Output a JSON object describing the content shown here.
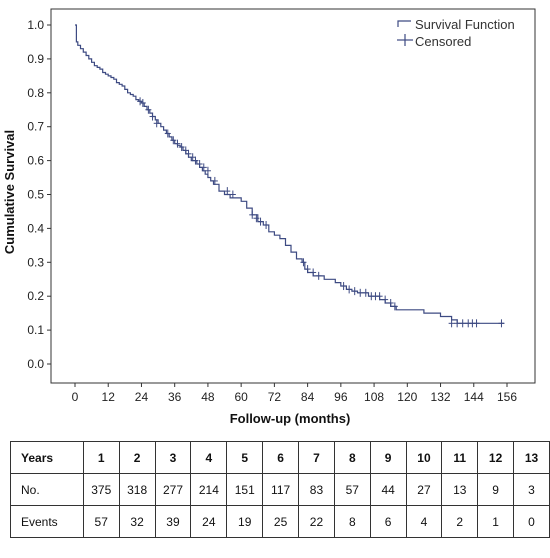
{
  "chart_data": {
    "type": "line",
    "step": true,
    "title": "",
    "xlabel": "Follow-up (months)",
    "ylabel": "Cumulative Survival",
    "xlim": [
      0,
      156
    ],
    "ylim": [
      0,
      1.0
    ],
    "xticks": [
      "0",
      "12",
      "24",
      "36",
      "48",
      "60",
      "72",
      "84",
      "96",
      "108",
      "120",
      "132",
      "144",
      "156"
    ],
    "yticks": [
      "0.0",
      "0.1",
      "0.2",
      "0.3",
      "0.4",
      "0.5",
      "0.6",
      "0.7",
      "0.8",
      "0.9",
      "1.0"
    ],
    "grid": false,
    "legend_position": "top-right",
    "legend": [
      "Survival Function",
      "Censored"
    ],
    "line_color": "#3d4a82",
    "series": [
      {
        "name": "Survival Function",
        "x": [
          0,
          0.5,
          1,
          2,
          3,
          4,
          5,
          6,
          7,
          8,
          9,
          10,
          11,
          12,
          13,
          14,
          15,
          16,
          17,
          18,
          19,
          20,
          21,
          22,
          23,
          24,
          25,
          26,
          27,
          28,
          29,
          30,
          31,
          32,
          33,
          34,
          35,
          36,
          37,
          38,
          39,
          40,
          41,
          42,
          43,
          44,
          45,
          46,
          47,
          48,
          49,
          50,
          52,
          54,
          56,
          58,
          60,
          62,
          64,
          66,
          68,
          70,
          72,
          74,
          76,
          78,
          80,
          82,
          83,
          84,
          86,
          88,
          90,
          92,
          94,
          96,
          98,
          100,
          102,
          104,
          106,
          108,
          110,
          112,
          114,
          116,
          118,
          120,
          122,
          124,
          126,
          128,
          130,
          132,
          134,
          136,
          138,
          140,
          155
        ],
        "y": [
          1.0,
          0.95,
          0.94,
          0.93,
          0.92,
          0.91,
          0.9,
          0.89,
          0.88,
          0.875,
          0.87,
          0.86,
          0.855,
          0.85,
          0.845,
          0.84,
          0.83,
          0.825,
          0.82,
          0.81,
          0.8,
          0.795,
          0.79,
          0.78,
          0.775,
          0.77,
          0.76,
          0.75,
          0.74,
          0.73,
          0.72,
          0.71,
          0.7,
          0.69,
          0.68,
          0.67,
          0.66,
          0.65,
          0.645,
          0.64,
          0.63,
          0.62,
          0.61,
          0.6,
          0.6,
          0.59,
          0.58,
          0.57,
          0.56,
          0.55,
          0.54,
          0.53,
          0.51,
          0.5,
          0.49,
          0.49,
          0.48,
          0.46,
          0.44,
          0.42,
          0.41,
          0.39,
          0.38,
          0.37,
          0.35,
          0.33,
          0.31,
          0.3,
          0.28,
          0.27,
          0.26,
          0.26,
          0.25,
          0.25,
          0.24,
          0.23,
          0.22,
          0.215,
          0.21,
          0.21,
          0.2,
          0.2,
          0.19,
          0.18,
          0.17,
          0.16,
          0.16,
          0.16,
          0.16,
          0.16,
          0.15,
          0.15,
          0.15,
          0.14,
          0.14,
          0.13,
          0.12,
          0.12,
          0.12
        ]
      }
    ],
    "censored": {
      "name": "Censored",
      "x": [
        23.5,
        24.5,
        26.5,
        28,
        29.5,
        33.5,
        35.5,
        37,
        38.5,
        40,
        41,
        42.5,
        43.5,
        45,
        46.5,
        48,
        50.5,
        55,
        57,
        64,
        65.5,
        67,
        69,
        82.5,
        84,
        86,
        88,
        97,
        99,
        101,
        103,
        105,
        107,
        108.5,
        110,
        112,
        114,
        115.5,
        136,
        138,
        140,
        142,
        143.5,
        145,
        154
      ],
      "y": [
        0.775,
        0.77,
        0.75,
        0.73,
        0.71,
        0.68,
        0.66,
        0.65,
        0.64,
        0.63,
        0.62,
        0.61,
        0.6,
        0.59,
        0.58,
        0.57,
        0.54,
        0.51,
        0.5,
        0.44,
        0.43,
        0.42,
        0.41,
        0.3,
        0.28,
        0.27,
        0.26,
        0.23,
        0.22,
        0.215,
        0.21,
        0.21,
        0.2,
        0.2,
        0.2,
        0.19,
        0.18,
        0.17,
        0.12,
        0.12,
        0.12,
        0.12,
        0.12,
        0.12,
        0.12
      ]
    }
  },
  "risk_table": {
    "headers": [
      "Years",
      "1",
      "2",
      "3",
      "4",
      "5",
      "6",
      "7",
      "8",
      "9",
      "10",
      "11",
      "12",
      "13"
    ],
    "rows": [
      {
        "label": "No.",
        "values": [
          "375",
          "318",
          "277",
          "214",
          "151",
          "117",
          "83",
          "57",
          "44",
          "27",
          "13",
          "9",
          "3"
        ]
      },
      {
        "label": "Events",
        "values": [
          "57",
          "32",
          "39",
          "24",
          "19",
          "25",
          "22",
          "8",
          "6",
          "4",
          "2",
          "1",
          "0"
        ]
      }
    ]
  }
}
